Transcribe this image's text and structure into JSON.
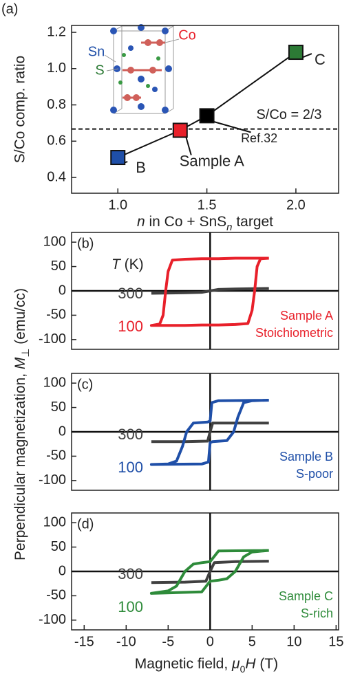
{
  "chart_data": [
    {
      "type": "scatter",
      "panel_label": "(a)",
      "ylabel": "S/Co comp. ratio",
      "xlabel": [
        "n",
        " in Co + SnS",
        "n",
        " target"
      ],
      "x": [
        1.0,
        1.35,
        1.5,
        2.0
      ],
      "values": [
        0.51,
        0.66,
        0.74,
        1.09
      ],
      "colors": [
        "#1f4fa8",
        "#e8202a",
        "#000000",
        "#2c7a35"
      ],
      "point_labels": [
        "B",
        "Sample A",
        "Ref.32",
        "C"
      ],
      "hline": 0.667,
      "hline_label": "S/Co = 2/3",
      "inset_labels": [
        "Sn",
        "S",
        "Co"
      ],
      "xlim": [
        0.74,
        2.24
      ],
      "ylim": [
        0.313,
        1.238
      ],
      "xticks": [
        {
          "value": 1,
          "label": "1.0"
        },
        1.5,
        {
          "value": 2,
          "label": "2.0"
        }
      ],
      "yticks": [
        0.4,
        0.6,
        0.8,
        {
          "value": 1,
          "label": "1.0"
        },
        1.2
      ]
    },
    {
      "type": "line",
      "panel_label": "(b)",
      "legend_title": [
        "T",
        " (K)"
      ],
      "annotations": [
        "Sample A",
        "Stoichiometric"
      ],
      "xlim": [
        -16.5,
        15.3
      ],
      "ylim": [
        -120,
        120
      ],
      "yticks": [
        -100,
        -50,
        0,
        50,
        100
      ],
      "series": [
        {
          "name": "300",
          "color": "#404040",
          "x": [
            -7,
            -3,
            -1,
            0,
            1,
            3,
            7
          ],
          "values": [
            -5,
            -4,
            -3,
            0,
            3,
            4,
            5
          ]
        },
        {
          "name": "100",
          "color": "#e8202a",
          "x": [
            7,
            5,
            3,
            1,
            -1,
            -3,
            -4.5,
            -5,
            -5.3,
            -5.6,
            -6,
            -7,
            -7,
            -5,
            -3,
            -1,
            1,
            3,
            4.5,
            5,
            5.3,
            5.6,
            6,
            7
          ],
          "values": [
            67,
            67,
            67,
            66,
            66,
            65,
            63,
            40,
            0,
            -50,
            -68,
            -71,
            -71,
            -71,
            -71,
            -70,
            -70,
            -69,
            -67,
            -40,
            0,
            50,
            66,
            67
          ]
        }
      ]
    },
    {
      "type": "line",
      "panel_label": "(c)",
      "ylabel": [
        "Perpendicular magnetization, ",
        "M",
        "⊥",
        " (emu/cc)"
      ],
      "annotations": [
        "Sample B",
        "S-poor"
      ],
      "xlim": [
        -16.5,
        15.3
      ],
      "ylim": [
        -120,
        120
      ],
      "yticks": [
        -100,
        -50,
        0,
        50,
        100
      ],
      "series": [
        {
          "name": "300",
          "color": "#404040",
          "x": [
            -7,
            -3,
            -0.3,
            0,
            0.3,
            3,
            7
          ],
          "values": [
            -20,
            -20,
            -19,
            0,
            18,
            18,
            18
          ]
        },
        {
          "name": "100",
          "color": "#1f4fa8",
          "x": [
            7,
            1,
            0.2,
            0,
            -0.3,
            -2,
            -2.8,
            -3.3,
            -4,
            -5,
            -7,
            -7,
            -1,
            -0.2,
            0,
            0.3,
            2,
            2.8,
            3.3,
            4,
            5,
            7
          ],
          "values": [
            65,
            64,
            60,
            22,
            20,
            18,
            0,
            -30,
            -60,
            -66,
            -67,
            -67,
            -66,
            -62,
            -22,
            -20,
            -18,
            0,
            30,
            60,
            64,
            65
          ]
        }
      ]
    },
    {
      "type": "line",
      "panel_label": "(d)",
      "xlabel": [
        "Magnetic field,  ",
        "μ",
        "0",
        "H",
        " (T)"
      ],
      "annotations": [
        "Sample C",
        "S-rich"
      ],
      "xlim": [
        -16.5,
        15.3
      ],
      "ylim": [
        -120,
        120
      ],
      "yticks": [
        -100,
        -50,
        0,
        50,
        100
      ],
      "xticks": [
        -15,
        -10,
        -5,
        0,
        5,
        10,
        15
      ],
      "series": [
        {
          "name": "300",
          "color": "#404040",
          "x": [
            -7,
            -3,
            -0.5,
            0,
            0.5,
            3,
            7
          ],
          "values": [
            -23,
            -22,
            -20,
            0,
            18,
            20,
            21
          ]
        },
        {
          "name": "100",
          "color": "#2e8b3a",
          "x": [
            7,
            1,
            0,
            -1,
            -2,
            -3,
            -4,
            -5,
            -7,
            -7,
            -1,
            0,
            1,
            2,
            3,
            4,
            5,
            7
          ],
          "values": [
            43,
            42,
            20,
            18,
            15,
            0,
            -30,
            -40,
            -45,
            -45,
            -42,
            -20,
            -18,
            -15,
            0,
            30,
            40,
            43
          ]
        }
      ]
    }
  ]
}
